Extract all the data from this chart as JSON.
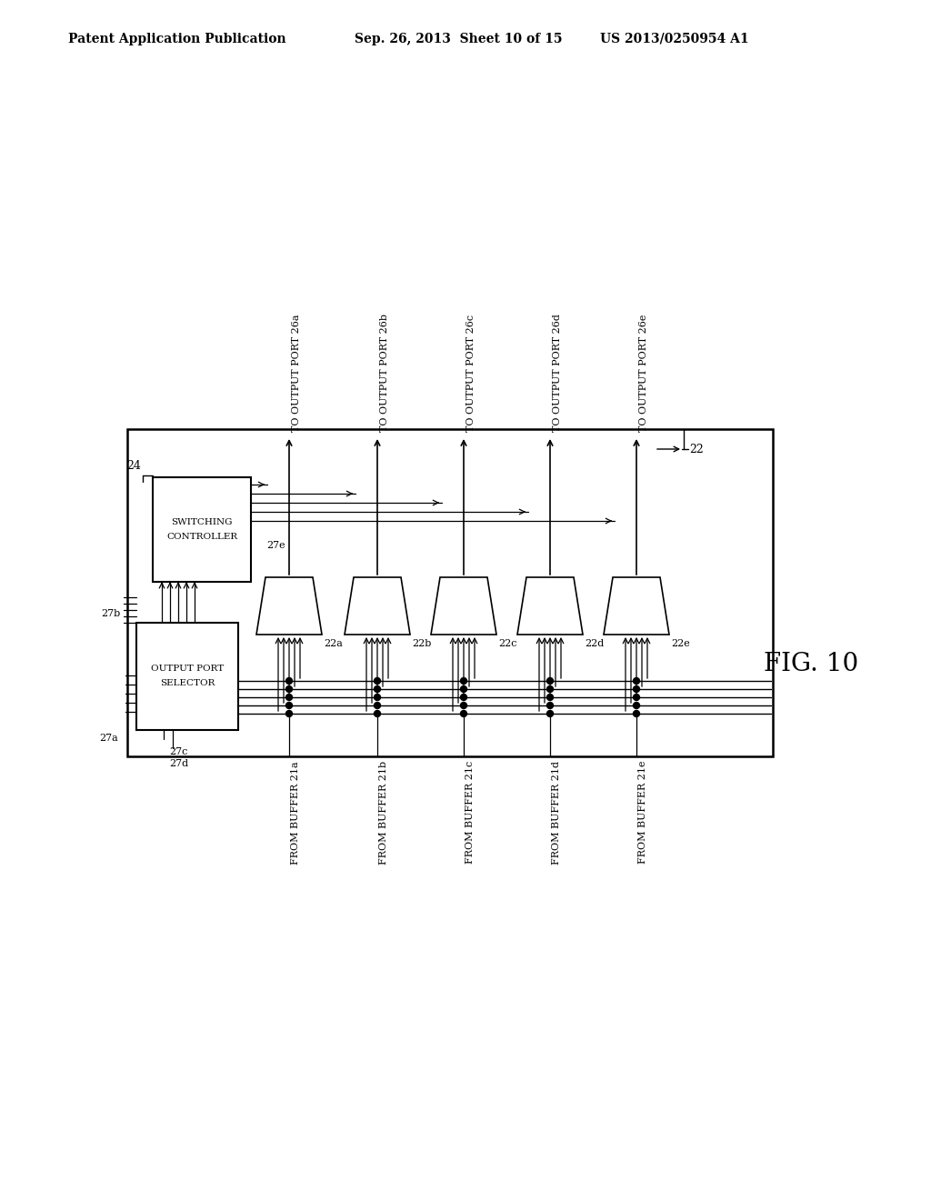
{
  "bg_color": "#ffffff",
  "line_color": "#000000",
  "header_left": "Patent Application Publication",
  "header_mid": "Sep. 26, 2013  Sheet 10 of 15",
  "header_right": "US 2013/0250954 A1",
  "fig_label": "FIG. 10",
  "label_24": "24",
  "label_22": "22",
  "label_switching_controller_1": "SWITCHING",
  "label_switching_controller_2": "CONTROLLER",
  "label_output_port_selector_1": "OUTPUT PORT",
  "label_output_port_selector_2": "SELECTOR",
  "label_27a": "27a",
  "label_27b": "27b",
  "label_27c": "27c",
  "label_27d": "27d",
  "label_27e": "27e",
  "mux_labels": [
    "22a",
    "22b",
    "22c",
    "22d",
    "22e"
  ],
  "output_labels": [
    "TO OUTPUT PORT 26a",
    "TO OUTPUT PORT 26b",
    "TO OUTPUT PORT 26c",
    "TO OUTPUT PORT 26d",
    "TO OUTPUT PORT 26e"
  ],
  "input_labels": [
    "FROM BUFFER 21a",
    "FROM BUFFER 21b",
    "FROM BUFFER 21c",
    "FROM BUFFER 21d",
    "FROM BUFFER 21e"
  ]
}
